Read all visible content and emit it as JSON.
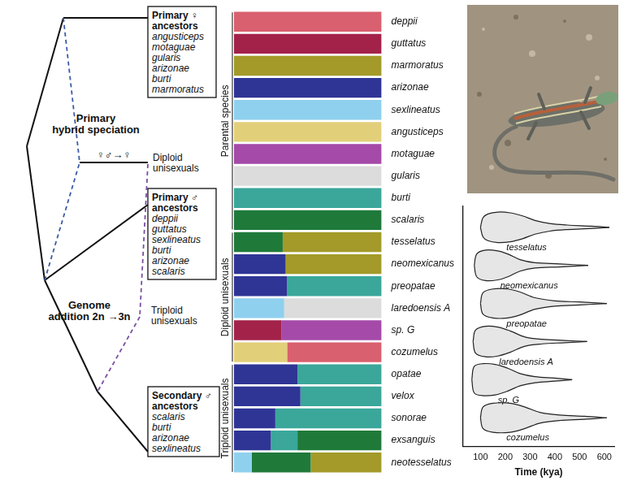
{
  "diagram": {
    "ancestor_boxes": [
      {
        "title": [
          "Primary ♀",
          "ancestors"
        ],
        "species": [
          "angusticeps",
          "motaguae",
          "gularis",
          "arizonae",
          "burti",
          "marmoratus"
        ]
      },
      {
        "title": [
          "Primary ♂",
          "ancestors"
        ],
        "species": [
          "deppii",
          "guttatus",
          "sexlineatus",
          "burti",
          "arizonae",
          "scalaris"
        ]
      },
      {
        "title": [
          "Secondary ♂",
          "ancestors"
        ],
        "species": [
          "scalaris",
          "burti",
          "arizonae",
          "sexlineatus"
        ]
      }
    ],
    "stages": [
      {
        "label": [
          "Primary",
          "hybrid speciation"
        ],
        "cross": "♀♂→♀",
        "result": [
          "Diploid",
          "unisexuals"
        ]
      },
      {
        "label": [
          "Genome",
          "addition 2n →3n"
        ],
        "result": [
          "Triploid",
          "unisexuals"
        ]
      }
    ]
  },
  "chart_data": [
    {
      "type": "bar",
      "orientation": "horizontal",
      "stacked": true,
      "grid": false,
      "tick_labels": "y",
      "xlim": [
        0,
        1
      ],
      "categories": [
        "deppii",
        "guttatus",
        "marmoratus",
        "arizonae",
        "sexlineatus",
        "angusticeps",
        "motaguae",
        "gularis",
        "burti",
        "scalaris",
        "tesselatus",
        "neomexicanus",
        "preopatae",
        "laredoensis A",
        "sp. G",
        "cozumelus",
        "opatae",
        "velox",
        "sonorae",
        "exsanguis",
        "neotesselatus"
      ],
      "groups": [
        {
          "label": "Parental species",
          "categories": [
            "deppii",
            "guttatus",
            "marmoratus",
            "arizonae",
            "sexlineatus",
            "angusticeps",
            "motaguae",
            "gularis",
            "burti",
            "scalaris"
          ]
        },
        {
          "label": "Diploid unisexuals",
          "categories": [
            "tesselatus",
            "neomexicanus",
            "preopatae",
            "laredoensis A",
            "sp. G",
            "cozumelus"
          ]
        },
        {
          "label": "Triploid unisexuals",
          "categories": [
            "opatae",
            "velox",
            "sonorae",
            "exsanguis",
            "neotesselatus"
          ]
        }
      ],
      "series": [
        {
          "name": "sexlineatus",
          "color": "#8fd0ee",
          "values": [
            0,
            0,
            0,
            0,
            1,
            0,
            0,
            0,
            0,
            0,
            0,
            0,
            0,
            0.34,
            0,
            0,
            0,
            0,
            0,
            0,
            0.12
          ]
        },
        {
          "name": "arizonae",
          "color": "#2f3595",
          "values": [
            0,
            0,
            0,
            1,
            0,
            0,
            0,
            0,
            0,
            0,
            0,
            0.35,
            0.36,
            0,
            0,
            0,
            0.43,
            0.45,
            0.28,
            0.25,
            0
          ]
        },
        {
          "name": "guttatus",
          "color": "#a3224a",
          "values": [
            0,
            1,
            0,
            0,
            0,
            0,
            0,
            0,
            0,
            0,
            0,
            0,
            0,
            0,
            0.32,
            0,
            0,
            0,
            0,
            0,
            0
          ]
        },
        {
          "name": "angusticeps",
          "color": "#e2cf7a",
          "values": [
            0,
            0,
            0,
            0,
            0,
            1,
            0,
            0,
            0,
            0,
            0,
            0,
            0,
            0,
            0,
            0.36,
            0,
            0,
            0,
            0,
            0
          ]
        },
        {
          "name": "burti",
          "color": "#3aa79a",
          "values": [
            0,
            0,
            0,
            0,
            0,
            0,
            0,
            0,
            1,
            0,
            0,
            0,
            0.64,
            0,
            0,
            0,
            0.57,
            0.55,
            0.72,
            0.18,
            0
          ]
        },
        {
          "name": "scalaris",
          "color": "#1f7a3a",
          "values": [
            0,
            0,
            0,
            0,
            0,
            0,
            0,
            0,
            0,
            1,
            0.33,
            0,
            0,
            0,
            0,
            0,
            0,
            0,
            0,
            0.57,
            0.4
          ]
        },
        {
          "name": "motaguae",
          "color": "#a54aa8",
          "values": [
            0,
            0,
            0,
            0,
            0,
            0,
            1,
            0,
            0,
            0,
            0,
            0,
            0,
            0,
            0.68,
            0,
            0,
            0,
            0,
            0,
            0
          ]
        },
        {
          "name": "gularis",
          "color": "#dcdcdc",
          "values": [
            0,
            0,
            0,
            0,
            0,
            0,
            0,
            1,
            0,
            0,
            0,
            0,
            0,
            0.66,
            0,
            0,
            0,
            0,
            0,
            0,
            0
          ]
        },
        {
          "name": "deppii",
          "color": "#d9606e",
          "values": [
            1,
            0,
            0,
            0,
            0,
            0,
            0,
            0,
            0,
            0,
            0,
            0,
            0,
            0,
            0,
            0.64,
            0,
            0,
            0,
            0,
            0
          ]
        },
        {
          "name": "marmoratus",
          "color": "#a39a2a",
          "values": [
            0,
            0,
            1,
            0,
            0,
            0,
            0,
            0,
            0,
            0,
            0.67,
            0.65,
            0,
            0,
            0,
            0,
            0,
            0,
            0,
            0,
            0.48
          ]
        }
      ]
    },
    {
      "type": "violin",
      "x_label": "Time (kya)",
      "xlim": [
        30,
        640
      ],
      "xticks": [
        100,
        200,
        300,
        400,
        500,
        600
      ],
      "tick_labels": "x",
      "grid": false,
      "color": "#e6e6e6",
      "series": [
        {
          "name": "tesselatus",
          "x": [
            100,
            110,
            130,
            170,
            220,
            270,
            320,
            380,
            450,
            550,
            620
          ],
          "halfwidth": [
            0,
            0.25,
            0.35,
            0.4,
            0.38,
            0.3,
            0.18,
            0.1,
            0.06,
            0.03,
            0
          ]
        },
        {
          "name": "neomexicanus",
          "x": [
            75,
            85,
            120,
            170,
            210,
            260,
            320,
            420,
            535
          ],
          "halfwidth": [
            0,
            0.3,
            0.4,
            0.38,
            0.3,
            0.15,
            0.07,
            0.04,
            0
          ]
        },
        {
          "name": "preopatae",
          "x": [
            100,
            110,
            150,
            210,
            260,
            320,
            400,
            500,
            610
          ],
          "halfwidth": [
            0,
            0.28,
            0.38,
            0.38,
            0.3,
            0.15,
            0.07,
            0.04,
            0
          ]
        },
        {
          "name": "laredoensis A",
          "x": [
            70,
            80,
            120,
            170,
            220,
            280,
            350,
            440,
            530
          ],
          "halfwidth": [
            0,
            0.3,
            0.4,
            0.38,
            0.28,
            0.12,
            0.06,
            0.03,
            0
          ]
        },
        {
          "name": "sp. G",
          "x": [
            65,
            75,
            110,
            160,
            210,
            260,
            320,
            400,
            470
          ],
          "halfwidth": [
            0,
            0.35,
            0.42,
            0.4,
            0.3,
            0.16,
            0.08,
            0.04,
            0
          ]
        },
        {
          "name": "cozumelus",
          "x": [
            100,
            110,
            150,
            220,
            280,
            340,
            420,
            520,
            610
          ],
          "halfwidth": [
            0,
            0.28,
            0.38,
            0.38,
            0.28,
            0.14,
            0.07,
            0.04,
            0
          ]
        }
      ]
    }
  ]
}
